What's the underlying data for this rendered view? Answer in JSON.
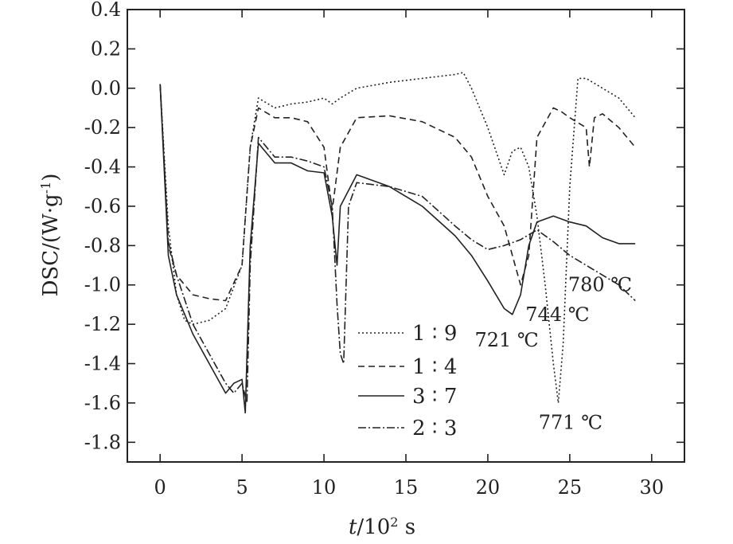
{
  "chart_data": {
    "type": "line",
    "title": "",
    "xlabel_italic": "t",
    "xlabel_rest": "/10",
    "xlabel_sup": "2",
    "xlabel_unit": " s",
    "ylabel": "DSC/(W·g",
    "ylabel_sup": "-1",
    "ylabel_close": ")",
    "xlim": [
      -2,
      32
    ],
    "ylim": [
      -1.9,
      0.4
    ],
    "x_ticks": [
      0,
      5,
      10,
      15,
      20,
      25,
      30
    ],
    "x_tick_labels": [
      "0",
      "5",
      "10",
      "15",
      "20",
      "25",
      "30"
    ],
    "y_ticks": [
      0.4,
      0.2,
      0.0,
      -0.2,
      -0.4,
      -0.6,
      -0.8,
      -1.0,
      -1.2,
      -1.4,
      -1.6,
      -1.8
    ],
    "y_tick_labels": [
      "0.4",
      "0.2",
      "0.0",
      "-0.2",
      "-0.4",
      "-0.6",
      "-0.8",
      "-1.0",
      "-1.2",
      "-1.4",
      "-1.6",
      "-1.8"
    ],
    "legend_position": "center",
    "series": [
      {
        "name": "1 ∶ 9",
        "dash": "2,3",
        "x": [
          0,
          0.5,
          1,
          1.5,
          2,
          3,
          4,
          5,
          5.5,
          6,
          7,
          8,
          9,
          10,
          10.5,
          11,
          12,
          14,
          16,
          18,
          18.5,
          19,
          20,
          21,
          21.5,
          22,
          22.5,
          23,
          23.5,
          24,
          24.3,
          24.6,
          25,
          25.5,
          26,
          27,
          28,
          29
        ],
        "y": [
          0.02,
          -0.7,
          -1.05,
          -1.18,
          -1.2,
          -1.18,
          -1.12,
          -0.9,
          -0.3,
          -0.05,
          -0.1,
          -0.08,
          -0.07,
          -0.05,
          -0.08,
          -0.05,
          0.0,
          0.03,
          0.05,
          0.07,
          0.08,
          0.0,
          -0.2,
          -0.44,
          -0.32,
          -0.3,
          -0.4,
          -0.65,
          -1.0,
          -1.4,
          -1.6,
          -1.3,
          -0.5,
          0.05,
          0.05,
          0.0,
          -0.05,
          -0.15
        ]
      },
      {
        "name": "1 ∶ 4",
        "dash": "8,5",
        "x": [
          0,
          0.5,
          1,
          2,
          3,
          4,
          5,
          5.5,
          6,
          7,
          8,
          9,
          10,
          10.5,
          11,
          12,
          14,
          16,
          18,
          19,
          20,
          21,
          21.5,
          22,
          22.5,
          23,
          24,
          24.5,
          25,
          26,
          26.2,
          26.5,
          27,
          28,
          29
        ],
        "y": [
          0.02,
          -0.8,
          -0.95,
          -1.05,
          -1.07,
          -1.08,
          -0.9,
          -0.3,
          -0.1,
          -0.15,
          -0.15,
          -0.17,
          -0.3,
          -0.62,
          -0.3,
          -0.15,
          -0.14,
          -0.17,
          -0.25,
          -0.35,
          -0.55,
          -0.7,
          -0.85,
          -1.0,
          -0.85,
          -0.25,
          -0.1,
          -0.12,
          -0.15,
          -0.2,
          -0.4,
          -0.15,
          -0.13,
          -0.2,
          -0.3
        ]
      },
      {
        "name": "3 ∶ 7",
        "dash": "",
        "x": [
          0,
          0.5,
          1,
          2,
          3,
          4,
          4.5,
          5,
          5.2,
          5.5,
          6,
          7,
          8,
          9,
          10,
          10.5,
          10.8,
          11,
          12,
          14,
          16,
          18,
          19,
          20,
          21,
          21.5,
          22,
          22.5,
          23,
          24,
          25,
          26,
          27,
          28,
          29
        ],
        "y": [
          0.02,
          -0.85,
          -1.05,
          -1.25,
          -1.4,
          -1.55,
          -1.5,
          -1.48,
          -1.65,
          -0.8,
          -0.28,
          -0.38,
          -0.38,
          -0.42,
          -0.43,
          -0.65,
          -0.9,
          -0.6,
          -0.44,
          -0.5,
          -0.6,
          -0.75,
          -0.85,
          -0.98,
          -1.12,
          -1.15,
          -1.05,
          -0.8,
          -0.68,
          -0.65,
          -0.68,
          -0.7,
          -0.76,
          -0.79,
          -0.79
        ]
      },
      {
        "name": "2 ∶ 3",
        "dash": "10,3,2,3",
        "x": [
          0,
          0.5,
          1,
          2,
          3,
          4,
          4.5,
          5,
          5.3,
          5.5,
          6,
          7,
          8,
          9,
          10,
          10.5,
          10.8,
          11,
          11.2,
          11.5,
          12,
          14,
          16,
          18,
          19,
          20,
          21,
          22,
          23,
          24,
          25,
          26,
          27,
          28,
          29
        ],
        "y": [
          0.02,
          -0.78,
          -0.95,
          -1.2,
          -1.35,
          -1.5,
          -1.55,
          -1.5,
          -1.6,
          -0.9,
          -0.25,
          -0.35,
          -0.35,
          -0.37,
          -0.4,
          -0.6,
          -1.1,
          -1.35,
          -1.4,
          -0.6,
          -0.48,
          -0.5,
          -0.55,
          -0.7,
          -0.77,
          -0.82,
          -0.8,
          -0.77,
          -0.72,
          -0.78,
          -0.85,
          -0.9,
          -0.95,
          -1.0,
          -1.08
        ]
      }
    ],
    "annotations": [
      {
        "text": "780 ℃",
        "x": 24.9,
        "y": -1.0
      },
      {
        "text": "744 ℃",
        "x": 22.3,
        "y": -1.15
      },
      {
        "text": "721 ℃",
        "x": 19.2,
        "y": -1.28
      },
      {
        "text": "771 ℃",
        "x": 23.1,
        "y": -1.7
      }
    ]
  }
}
